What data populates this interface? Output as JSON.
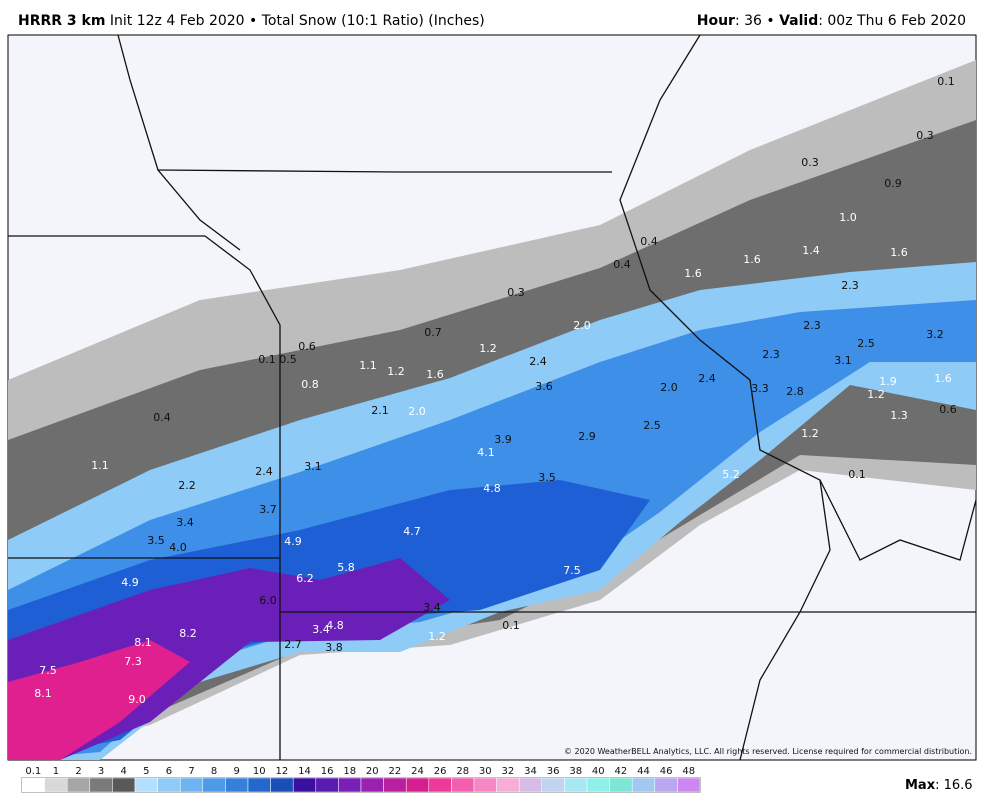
{
  "header": {
    "model": "HRRR 3 km",
    "desc": "Init 12z 4 Feb 2020 • Total Snow (10:1 Ratio) (Inches)",
    "hour_label": "Hour",
    "hour": ": 36 • ",
    "valid_label": "Valid",
    "valid": ": 00z Thu 6 Feb 2020"
  },
  "map": {
    "labels": [
      "0.1",
      "0.3",
      "0.3",
      "0.9",
      "1.0",
      "0.4",
      "1.6",
      "1.4",
      "1.6",
      "0.4",
      "1.6",
      "2.3",
      "0.3",
      "2.0",
      "2.3",
      "3.2",
      "0.7",
      "0.6",
      "1.2",
      "2.5",
      "0.1",
      "0.5",
      "2.4",
      "1.1",
      "1.2",
      "2.3",
      "3.1",
      "1.6",
      "3.6",
      "2.0",
      "2.4",
      "3.3",
      "2.8",
      "1.9",
      "1.6",
      "0.8",
      "1.2",
      "2.1",
      "2.0",
      "0.6",
      "1.3",
      "0.4",
      "2.5",
      "2.9",
      "1.2",
      "3.9",
      "4.1",
      "1.1",
      "3.1",
      "2.4",
      "3.5",
      "5.2",
      "0.1",
      "2.2",
      "4.8",
      "3.7",
      "3.4",
      "4.7",
      "3.5",
      "4.0",
      "4.9",
      "5.8",
      "6.2",
      "7.5",
      "4.9",
      "6.0",
      "3.4",
      "0.1",
      "8.2",
      "8.1",
      "3.4",
      "4.8",
      "1.2",
      "2.7",
      "3.8",
      "7.3",
      "7.5",
      "8.1",
      "9.0"
    ],
    "copyright": "© 2020 WeatherBELL Analytics, LLC. All rights reserved. License required for commercial distribution."
  },
  "legend": {
    "ticks": [
      0.1,
      1,
      2,
      3,
      4,
      5,
      6,
      7,
      8,
      9,
      10,
      12,
      14,
      16,
      18,
      20,
      22,
      24,
      26,
      28,
      30,
      32,
      34,
      36,
      38,
      40,
      42,
      44,
      46,
      48
    ],
    "colors": [
      "#ffffff",
      "#d9d9d9",
      "#a6a6a6",
      "#7a7a7a",
      "#595959",
      "#b3e0ff",
      "#8ecbf7",
      "#6fb4f0",
      "#4f9ae6",
      "#3680dc",
      "#2468cf",
      "#1a4fb8",
      "#3b0fa0",
      "#5a1bb0",
      "#7a1fb8",
      "#9a20b0",
      "#b820a0",
      "#d61f8f",
      "#ec3a9a",
      "#f25fae",
      "#f587c2",
      "#f7aed6",
      "#d6bde8",
      "#c0d4f0",
      "#a8e8f4",
      "#8ff0ea",
      "#7ee6d6",
      "#a0c8f0",
      "#b8a8f0",
      "#cc88f0"
    ],
    "max_label": "Max",
    "max": ": 16.6"
  }
}
